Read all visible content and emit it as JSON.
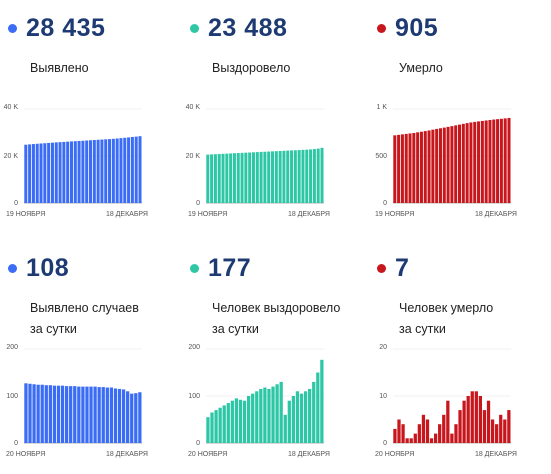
{
  "panels": [
    {
      "number": "28 435",
      "label": "Выявлено",
      "color": "#3a6cf5"
    },
    {
      "number": "23 488",
      "label": "Выздоровело",
      "color": "#2ec7a6"
    },
    {
      "number": "905",
      "label": "Умерло",
      "color": "#c8161d"
    },
    {
      "number": "108",
      "label": "Выявлено случаев\nза сутки",
      "color": "#3a6cf5"
    },
    {
      "number": "177",
      "label": "Человек выздоровело\nза сутки",
      "color": "#2ec7a6"
    },
    {
      "number": "7",
      "label": "Человек умерло\nза сутки",
      "color": "#c8161d"
    }
  ],
  "chart_data": [
    {
      "type": "bar",
      "color": "#3a6cf5",
      "ylim": [
        0,
        40000
      ],
      "yticks": [
        "0",
        "20 K",
        "40 K"
      ],
      "ytick_values": [
        0,
        20000,
        40000
      ],
      "x_start": "19 НОЯБРЯ",
      "x_end": "18 ДЕКАБРЯ",
      "values": [
        24800,
        24950,
        25080,
        25200,
        25320,
        25440,
        25560,
        25680,
        25800,
        25900,
        26000,
        26100,
        26200,
        26300,
        26400,
        26500,
        26600,
        26700,
        26800,
        26900,
        27000,
        27100,
        27200,
        27300,
        27450,
        27600,
        27750,
        27900,
        28100,
        28250,
        28435
      ]
    },
    {
      "type": "bar",
      "color": "#2ec7a6",
      "ylim": [
        0,
        40000
      ],
      "yticks": [
        "0",
        "20 K",
        "40 K"
      ],
      "ytick_values": [
        0,
        20000,
        40000
      ],
      "x_start": "19 НОЯБРЯ",
      "x_end": "18 ДЕКАБРЯ",
      "values": [
        20600,
        20700,
        20780,
        20860,
        20940,
        21020,
        21100,
        21180,
        21260,
        21340,
        21420,
        21500,
        21580,
        21660,
        21740,
        21820,
        21900,
        21980,
        22060,
        22140,
        22220,
        22300,
        22380,
        22460,
        22540,
        22620,
        22700,
        22800,
        22950,
        23150,
        23488
      ]
    },
    {
      "type": "bar",
      "color": "#c8161d",
      "ylim": [
        0,
        1000
      ],
      "yticks": [
        "0",
        "500",
        "1 K"
      ],
      "ytick_values": [
        0,
        500,
        1000
      ],
      "x_start": "19 НОЯБРЯ",
      "x_end": "18 ДЕКАБРЯ",
      "values": [
        720,
        725,
        730,
        735,
        740,
        745,
        752,
        758,
        765,
        772,
        780,
        788,
        795,
        802,
        810,
        818,
        826,
        834,
        842,
        850,
        857,
        863,
        868,
        873,
        878,
        883,
        888,
        892,
        896,
        900,
        905
      ]
    },
    {
      "type": "bar",
      "color": "#3a6cf5",
      "ylim": [
        0,
        200
      ],
      "yticks": [
        "0",
        "100",
        "200"
      ],
      "ytick_values": [
        0,
        100,
        200
      ],
      "x_start": "20 НОЯБРЯ",
      "x_end": "18 ДЕКАБРЯ",
      "values": [
        127,
        126,
        125,
        124,
        124,
        123,
        123,
        122,
        122,
        122,
        121,
        121,
        121,
        120,
        120,
        120,
        120,
        120,
        119,
        119,
        118,
        118,
        116,
        115,
        114,
        110,
        105,
        106,
        108
      ]
    },
    {
      "type": "bar",
      "color": "#2ec7a6",
      "ylim": [
        0,
        200
      ],
      "yticks": [
        "0",
        "100",
        "200"
      ],
      "ytick_values": [
        0,
        100,
        200
      ],
      "x_start": "20 НОЯБРЯ",
      "x_end": "18 ДЕКАБРЯ",
      "values": [
        55,
        65,
        70,
        75,
        80,
        85,
        90,
        95,
        92,
        90,
        100,
        105,
        110,
        115,
        118,
        115,
        120,
        125,
        130,
        60,
        90,
        100,
        110,
        105,
        110,
        115,
        130,
        150,
        177
      ]
    },
    {
      "type": "bar",
      "color": "#c8161d",
      "ylim": [
        0,
        20
      ],
      "yticks": [
        "0",
        "10",
        "20"
      ],
      "ytick_values": [
        0,
        10,
        20
      ],
      "x_start": "20 НОЯБРЯ",
      "x_end": "18 ДЕКАБРЯ",
      "values": [
        3,
        5,
        4,
        1,
        1,
        2,
        4,
        6,
        5,
        1,
        2,
        4,
        6,
        9,
        2,
        4,
        7,
        9,
        10,
        11,
        11,
        10,
        7,
        9,
        5,
        4,
        6,
        5,
        7
      ]
    }
  ]
}
